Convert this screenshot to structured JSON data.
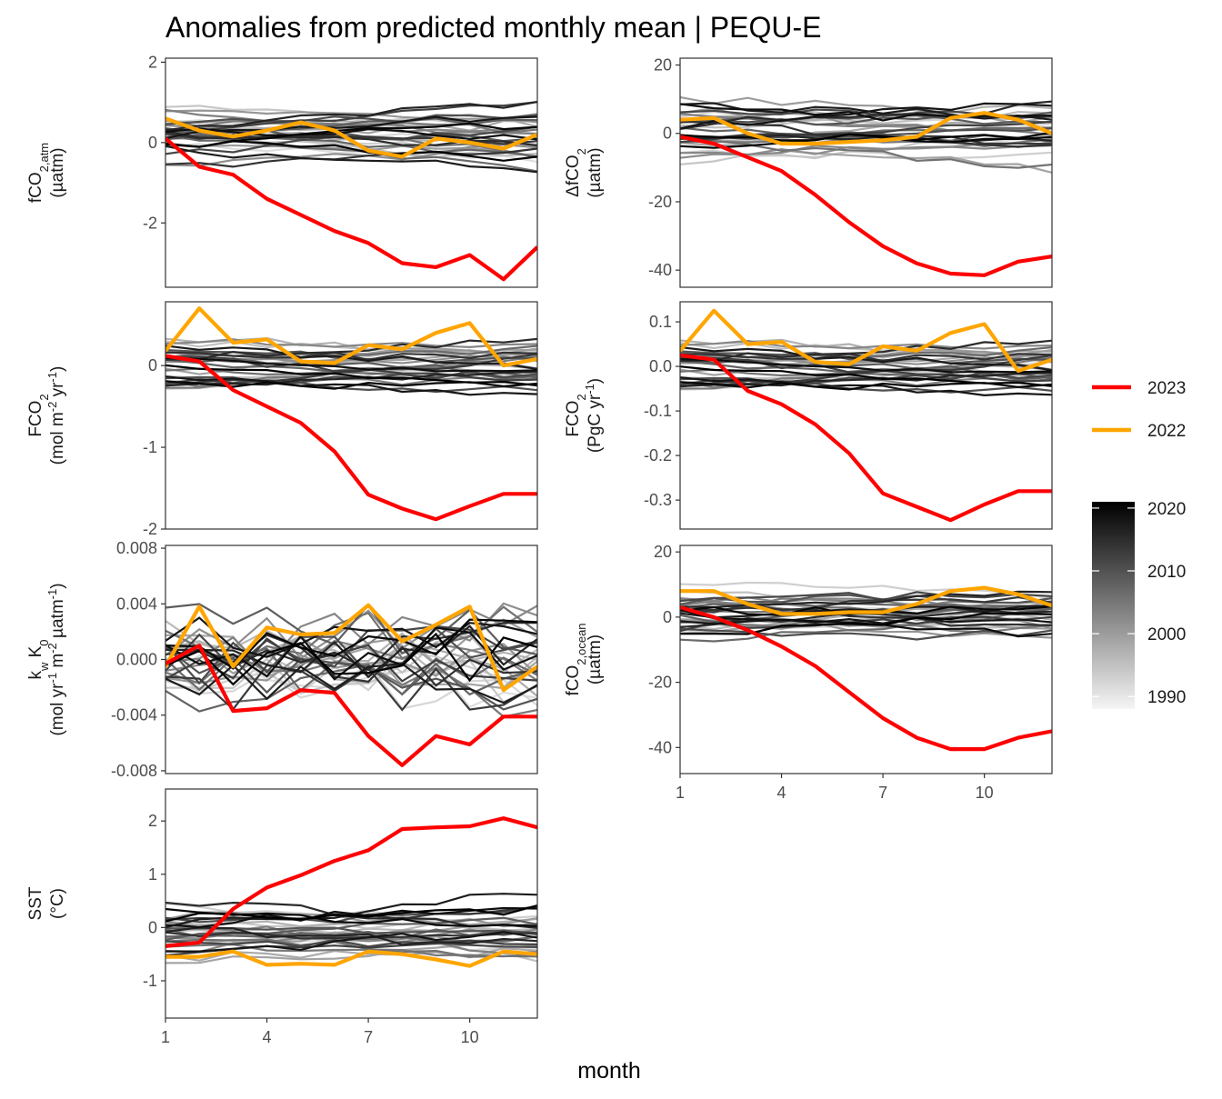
{
  "title": "Anomalies from predicted monthly mean | PEQU-E",
  "x_axis_title": "month",
  "legend": {
    "lines": [
      {
        "label": "2023",
        "color": "#ff0000"
      },
      {
        "label": "2022",
        "color": "#ffa500"
      }
    ],
    "colorbar": {
      "labels": [
        "2020",
        "2010",
        "2000",
        "1990"
      ],
      "values": [
        2020,
        2010,
        2000,
        1990
      ],
      "range": [
        1988,
        2021
      ],
      "low_color": "#f5f5f5",
      "high_color": "#000000"
    }
  },
  "chart_data": [
    {
      "id": "fco2atm",
      "type": "line",
      "col": 0,
      "row": 0,
      "ylabel_html": "fCO<tspan baseline-shift='sub' font-size='13'>2,atm</tspan>",
      "ylabel2": "(µatm)",
      "xlim": [
        1,
        12
      ],
      "ylim": [
        -3.6,
        2.1
      ],
      "yticks": [
        {
          "v": 2,
          "label": "2"
        },
        {
          "v": 0,
          "label": "0"
        },
        {
          "v": -2,
          "label": "-2"
        }
      ],
      "xticks": [],
      "bg_amp": 0.55,
      "bg_offset": 0.1,
      "bg_seed": 11,
      "series": [
        {
          "name": "2023",
          "color": "#ff0000",
          "x": [
            1,
            2,
            3,
            4,
            5,
            6,
            7,
            8,
            9,
            10,
            11,
            12
          ],
          "values": [
            0.1,
            -0.6,
            -0.8,
            -1.4,
            -1.8,
            -2.2,
            -2.5,
            -3.0,
            -3.1,
            -2.8,
            -3.4,
            -2.6
          ]
        },
        {
          "name": "2022",
          "color": "#ffa500",
          "x": [
            1,
            2,
            3,
            4,
            5,
            6,
            7,
            8,
            9,
            10,
            11,
            12
          ],
          "values": [
            0.6,
            0.3,
            0.15,
            0.3,
            0.5,
            0.3,
            -0.2,
            -0.35,
            0.1,
            0.0,
            -0.15,
            0.2
          ]
        }
      ]
    },
    {
      "id": "dfco2",
      "type": "line",
      "col": 1,
      "row": 0,
      "ylabel_html": "ΔfCO<tspan baseline-shift='sub' font-size='13'>2</tspan>",
      "ylabel2": "(µatm)",
      "xlim": [
        1,
        12
      ],
      "ylim": [
        -45,
        22
      ],
      "yticks": [
        {
          "v": 20,
          "label": "20"
        },
        {
          "v": 0,
          "label": "0"
        },
        {
          "v": -20,
          "label": "-20"
        },
        {
          "v": -40,
          "label": "-40"
        }
      ],
      "xticks": [],
      "bg_amp": 6.5,
      "bg_offset": 0.5,
      "bg_seed": 23,
      "series": [
        {
          "name": "2023",
          "color": "#ff0000",
          "x": [
            1,
            2,
            3,
            4,
            5,
            6,
            7,
            8,
            9,
            10,
            11,
            12
          ],
          "values": [
            -1,
            -3,
            -7,
            -11,
            -18,
            -26,
            -33,
            -38,
            -41,
            -41.5,
            -37.5,
            -36
          ]
        },
        {
          "name": "2022",
          "color": "#ffa500",
          "x": [
            1,
            2,
            3,
            4,
            5,
            6,
            7,
            8,
            9,
            10,
            11,
            12
          ],
          "values": [
            4,
            4.5,
            0,
            -3,
            -3,
            -2.5,
            -2,
            -1,
            4.5,
            6,
            4,
            0
          ]
        }
      ]
    },
    {
      "id": "fco2flux",
      "type": "line",
      "col": 0,
      "row": 1,
      "ylabel_html": "FCO<tspan baseline-shift='sub' font-size='13'>2</tspan>",
      "ylabel2_html": "(mol m<tspan baseline-shift='super' font-size='13'>-2</tspan> yr<tspan baseline-shift='super' font-size='13'>-1</tspan>)",
      "xlim": [
        1,
        12
      ],
      "ylim": [
        -2.0,
        0.78
      ],
      "yticks": [
        {
          "v": 0,
          "label": "0"
        },
        {
          "v": -1,
          "label": "-1"
        },
        {
          "v": -2,
          "label": "-2"
        }
      ],
      "xticks": [],
      "bg_amp": 0.25,
      "bg_offset": 0.02,
      "bg_seed": 37,
      "series": [
        {
          "name": "2023",
          "color": "#ff0000",
          "x": [
            1,
            2,
            3,
            4,
            5,
            6,
            7,
            8,
            9,
            10,
            11,
            12
          ],
          "values": [
            0.12,
            0.05,
            -0.3,
            -0.5,
            -0.7,
            -1.05,
            -1.58,
            -1.75,
            -1.88,
            -1.72,
            -1.57,
            -1.57
          ]
        },
        {
          "name": "2022",
          "color": "#ffa500",
          "x": [
            1,
            2,
            3,
            4,
            5,
            6,
            7,
            8,
            9,
            10,
            11,
            12
          ],
          "values": [
            0.18,
            0.7,
            0.28,
            0.32,
            0.05,
            0.03,
            0.25,
            0.2,
            0.4,
            0.52,
            0.0,
            0.08
          ]
        }
      ]
    },
    {
      "id": "fco2flux_pg",
      "type": "line",
      "col": 1,
      "row": 1,
      "ylabel_html": "FCO<tspan baseline-shift='sub' font-size='13'>2</tspan>",
      "ylabel2_html": "(PgC yr<tspan baseline-shift='super' font-size='13'>-1</tspan>)",
      "xlim": [
        1,
        12
      ],
      "ylim": [
        -0.365,
        0.145
      ],
      "yticks": [
        {
          "v": 0.1,
          "label": "0.1"
        },
        {
          "v": 0.0,
          "label": "0.0"
        },
        {
          "v": -0.1,
          "label": "-0.1"
        },
        {
          "v": -0.2,
          "label": "-0.2"
        },
        {
          "v": -0.3,
          "label": "-0.3"
        }
      ],
      "xticks": [],
      "bg_amp": 0.045,
      "bg_offset": 0.003,
      "bg_seed": 37,
      "series": [
        {
          "name": "2023",
          "color": "#ff0000",
          "x": [
            1,
            2,
            3,
            4,
            5,
            6,
            7,
            8,
            9,
            10,
            11,
            12
          ],
          "values": [
            0.025,
            0.015,
            -0.055,
            -0.085,
            -0.13,
            -0.195,
            -0.285,
            -0.315,
            -0.345,
            -0.31,
            -0.28,
            -0.28
          ]
        },
        {
          "name": "2022",
          "color": "#ffa500",
          "x": [
            1,
            2,
            3,
            4,
            5,
            6,
            7,
            8,
            9,
            10,
            11,
            12
          ],
          "values": [
            0.035,
            0.125,
            0.05,
            0.055,
            0.01,
            0.005,
            0.045,
            0.035,
            0.075,
            0.095,
            -0.01,
            0.015
          ]
        }
      ]
    },
    {
      "id": "kwk0",
      "type": "line",
      "col": 0,
      "row": 2,
      "ylabel_html": "k<tspan baseline-shift='sub' font-size='13'>w</tspan> K<tspan baseline-shift='sub' font-size='13'>0</tspan>",
      "ylabel2_html": "(mol yr<tspan baseline-shift='super' font-size='13'>-1</tspan> m<tspan baseline-shift='super' font-size='13'>-2</tspan> µatm<tspan baseline-shift='super' font-size='13'>-1</tspan>)",
      "xlim": [
        1,
        12
      ],
      "ylim": [
        -0.0082,
        0.0082
      ],
      "yticks": [
        {
          "v": 0.008,
          "label": "0.008"
        },
        {
          "v": 0.004,
          "label": "0.004"
        },
        {
          "v": 0.0,
          "label": "0.000"
        },
        {
          "v": -0.004,
          "label": "-0.004"
        },
        {
          "v": -0.008,
          "label": "-0.008"
        }
      ],
      "xticks": [],
      "bg_amp": 0.0022,
      "bg_offset": 0.0,
      "bg_seed": 53,
      "bg_jagged": true,
      "series": [
        {
          "name": "2023",
          "color": "#ff0000",
          "x": [
            1,
            2,
            3,
            4,
            5,
            6,
            7,
            8,
            9,
            10,
            11,
            12
          ],
          "values": [
            -0.0003,
            0.001,
            -0.0037,
            -0.0035,
            -0.0022,
            -0.0024,
            -0.0055,
            -0.0076,
            -0.0055,
            -0.0061,
            -0.0041,
            -0.0041
          ]
        },
        {
          "name": "2022",
          "color": "#ffa500",
          "x": [
            1,
            2,
            3,
            4,
            5,
            6,
            7,
            8,
            9,
            10,
            11,
            12
          ],
          "values": [
            -0.0005,
            0.0038,
            -0.0005,
            0.0023,
            0.0018,
            0.0019,
            0.0039,
            0.0013,
            0.0025,
            0.0038,
            -0.0022,
            -0.0005
          ]
        }
      ]
    },
    {
      "id": "fco2ocean",
      "type": "line",
      "col": 1,
      "row": 2,
      "ylabel_html": "fCO<tspan baseline-shift='sub' font-size='13'>2,ocean</tspan>",
      "ylabel2": "(µatm)",
      "xlim": [
        1,
        12
      ],
      "ylim": [
        -48,
        22
      ],
      "yticks": [
        {
          "v": 20,
          "label": "20"
        },
        {
          "v": 0,
          "label": "0"
        },
        {
          "v": -20,
          "label": "-20"
        },
        {
          "v": -40,
          "label": "-40"
        }
      ],
      "xticks": [
        {
          "v": 1,
          "label": "1"
        },
        {
          "v": 4,
          "label": "4"
        },
        {
          "v": 7,
          "label": "7"
        },
        {
          "v": 10,
          "label": "10"
        }
      ],
      "bg_amp": 6.5,
      "bg_offset": 1.0,
      "bg_seed": 61,
      "series": [
        {
          "name": "2023",
          "color": "#ff0000",
          "x": [
            1,
            2,
            3,
            4,
            5,
            6,
            7,
            8,
            9,
            10,
            11,
            12
          ],
          "values": [
            3,
            0,
            -4,
            -9,
            -15,
            -23,
            -31,
            -37,
            -40.5,
            -40.5,
            -37,
            -35
          ]
        },
        {
          "name": "2022",
          "color": "#ffa500",
          "x": [
            1,
            2,
            3,
            4,
            5,
            6,
            7,
            8,
            9,
            10,
            11,
            12
          ],
          "values": [
            8,
            8,
            4,
            1,
            1,
            1.5,
            1.5,
            4,
            8,
            9,
            7,
            3.5
          ]
        }
      ]
    },
    {
      "id": "sst",
      "type": "line",
      "col": 0,
      "row": 3,
      "ylabel_html": "SST",
      "ylabel2": "(°C)",
      "xlim": [
        1,
        12
      ],
      "ylim": [
        -1.7,
        2.6
      ],
      "yticks": [
        {
          "v": 2,
          "label": "2"
        },
        {
          "v": 1,
          "label": "1"
        },
        {
          "v": 0,
          "label": "0"
        },
        {
          "v": -1,
          "label": "-1"
        }
      ],
      "xticks": [
        {
          "v": 1,
          "label": "1"
        },
        {
          "v": 4,
          "label": "4"
        },
        {
          "v": 7,
          "label": "7"
        },
        {
          "v": 10,
          "label": "10"
        }
      ],
      "bg_amp": 0.45,
      "bg_offset": -0.05,
      "bg_seed": 79,
      "series": [
        {
          "name": "2023",
          "color": "#ff0000",
          "x": [
            1,
            2,
            3,
            4,
            5,
            6,
            7,
            8,
            9,
            10,
            11,
            12
          ],
          "values": [
            -0.35,
            -0.28,
            0.35,
            0.75,
            0.98,
            1.25,
            1.45,
            1.85,
            1.88,
            1.9,
            2.05,
            1.88
          ]
        },
        {
          "name": "2022",
          "color": "#ffa500",
          "x": [
            1,
            2,
            3,
            4,
            5,
            6,
            7,
            8,
            9,
            10,
            11,
            12
          ],
          "values": [
            -0.55,
            -0.55,
            -0.45,
            -0.7,
            -0.68,
            -0.7,
            -0.45,
            -0.5,
            -0.6,
            -0.72,
            -0.45,
            -0.5
          ]
        }
      ]
    }
  ]
}
